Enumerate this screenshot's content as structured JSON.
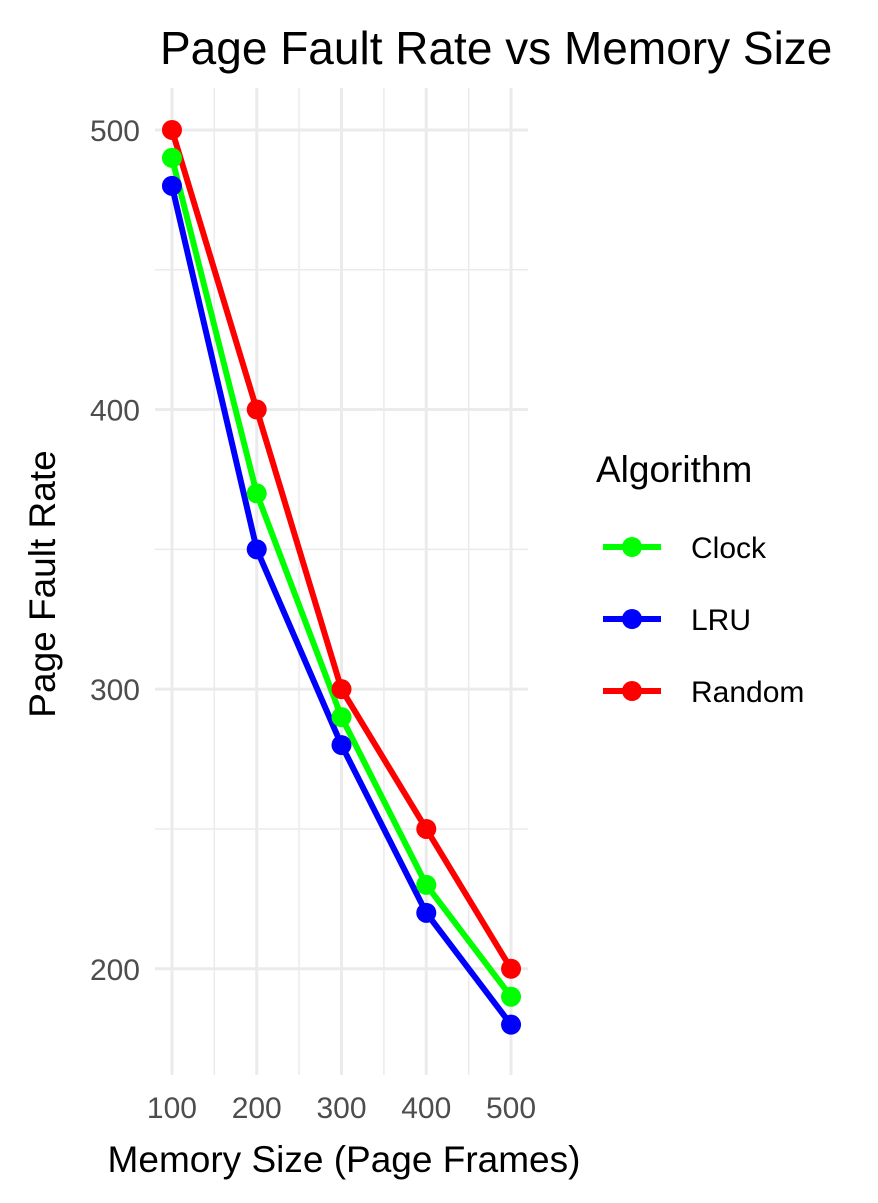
{
  "chart_data": {
    "type": "line",
    "title": "Page Fault Rate vs Memory Size",
    "xlabel": "Memory Size (Page Frames)",
    "ylabel": "Page Fault Rate",
    "x": [
      100,
      200,
      300,
      400,
      500
    ],
    "x_ticks": [
      100,
      200,
      300,
      400,
      500
    ],
    "y_ticks": [
      200,
      300,
      400,
      500
    ],
    "xlim": [
      80,
      520
    ],
    "ylim": [
      162,
      515
    ],
    "grid": true,
    "legend": {
      "title": "Algorithm",
      "position": "right"
    },
    "series": [
      {
        "name": "Clock",
        "color": "#00ff00",
        "values": [
          490,
          370,
          290,
          230,
          190
        ]
      },
      {
        "name": "LRU",
        "color": "#0000ff",
        "values": [
          480,
          350,
          280,
          220,
          180
        ]
      },
      {
        "name": "Random",
        "color": "#ff0000",
        "values": [
          500,
          400,
          300,
          250,
          200
        ]
      }
    ]
  }
}
